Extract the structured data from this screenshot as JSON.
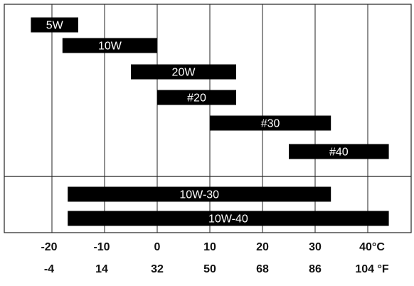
{
  "chart_data": {
    "type": "bar",
    "orientation": "horizontal-range",
    "xlim": [
      -26,
      46
    ],
    "ticks_c": [
      -20,
      -10,
      0,
      10,
      20,
      30,
      40
    ],
    "tick_labels_c": [
      "-20",
      "-10",
      "0",
      "10",
      "20",
      "30",
      "40°C"
    ],
    "tick_labels_f": [
      "-4",
      "14",
      "32",
      "50",
      "68",
      "86",
      "104 °F"
    ],
    "grid": true,
    "groups": [
      {
        "bars": [
          {
            "label": "5W",
            "start": -24,
            "end": -15
          },
          {
            "label": "10W",
            "start": -18,
            "end": 0
          },
          {
            "label": "20W",
            "start": -5,
            "end": 15
          },
          {
            "label": "#20",
            "start": 0,
            "end": 15
          },
          {
            "label": "#30",
            "start": 10,
            "end": 33
          },
          {
            "label": "#40",
            "start": 25,
            "end": 44
          }
        ]
      },
      {
        "bars": [
          {
            "label": "10W-30",
            "start": -17,
            "end": 33
          },
          {
            "label": "10W-40",
            "start": -17,
            "end": 44
          }
        ]
      }
    ]
  }
}
